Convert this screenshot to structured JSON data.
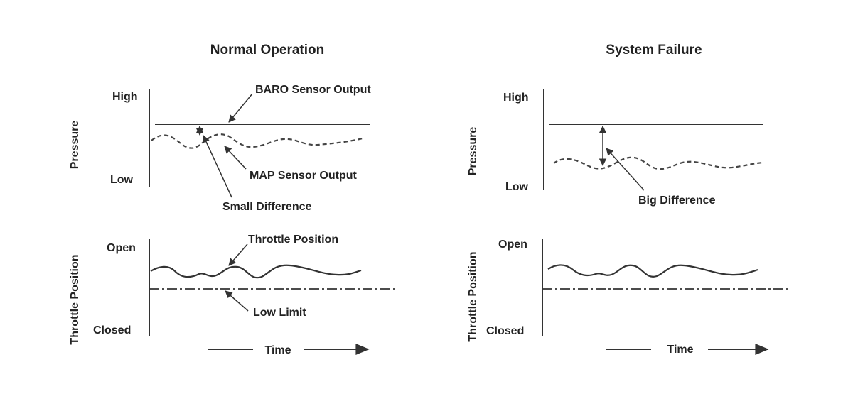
{
  "normal": {
    "title": "Normal Operation",
    "pressure_axis": "Pressure",
    "high": "High",
    "low": "Low",
    "baro_label": "BARO Sensor Output",
    "map_label": "MAP Sensor Output",
    "diff_label": "Small Difference",
    "throttle_axis": "Throttle Position",
    "open": "Open",
    "closed": "Closed",
    "throttle_label": "Throttle Position",
    "low_limit_label": "Low Limit",
    "time": "Time"
  },
  "failure": {
    "title": "System Failure",
    "pressure_axis": "Pressure",
    "high": "High",
    "low": "Low",
    "diff_label": "Big Difference",
    "throttle_axis": "Throttle Position",
    "open": "Open",
    "closed": "Closed",
    "time": "Time"
  },
  "colors": {
    "line": "#333333",
    "text": "#222222"
  }
}
